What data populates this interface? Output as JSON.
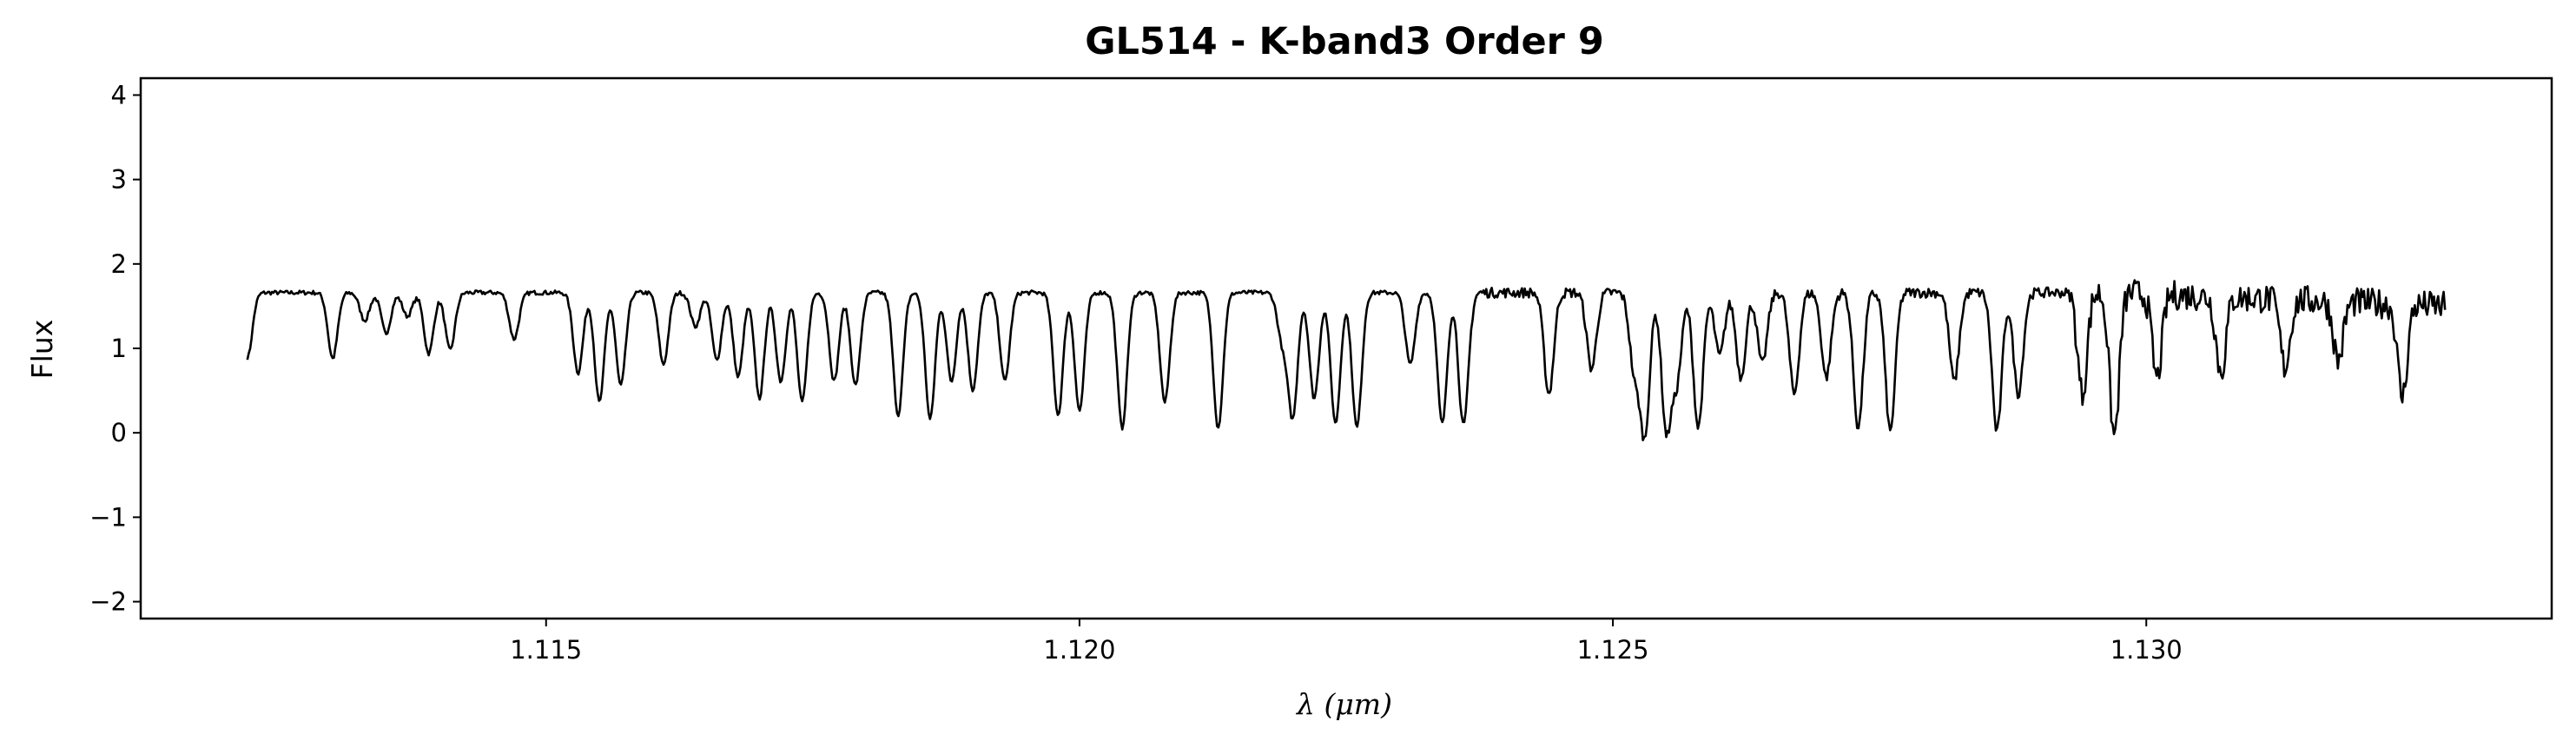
{
  "chart_data": {
    "type": "line",
    "title": "GL514 - K-band3 Order 9",
    "xlabel": "λ (μm)",
    "ylabel": "Flux",
    "xlim": [
      1.1112,
      1.1338
    ],
    "ylim": [
      -2.2,
      4.2
    ],
    "xticks": [
      1.115,
      1.12,
      1.125,
      1.13
    ],
    "xtick_labels": [
      "1.115",
      "1.120",
      "1.125",
      "1.130"
    ],
    "yticks": [
      -2,
      -1,
      0,
      1,
      2,
      3,
      4
    ],
    "ytick_labels": [
      "−2",
      "−1",
      "0",
      "1",
      "2",
      "3",
      "4"
    ],
    "grid": false,
    "series": [
      {
        "color": "#000000",
        "x_start": 1.1122,
        "x_end": 1.1328,
        "continuum": 1.66,
        "continuum_slope_end": 1.5,
        "absorption_lines": [
          [
            1.1122,
            0.35
          ],
          [
            1.1122,
            0.42
          ],
          [
            1.113,
            0.78
          ],
          [
            1.1133,
            0.33
          ],
          [
            1.1135,
            0.48
          ],
          [
            1.1137,
            0.28
          ],
          [
            1.1139,
            0.72
          ],
          [
            1.1141,
            0.68
          ],
          [
            1.1147,
            0.55
          ],
          [
            1.1153,
            0.95
          ],
          [
            1.1155,
            1.3
          ],
          [
            1.1157,
            1.1
          ],
          [
            1.1161,
            0.85
          ],
          [
            1.1164,
            0.4
          ],
          [
            1.1166,
            0.8
          ],
          [
            1.1168,
            1.0
          ],
          [
            1.117,
            1.25
          ],
          [
            1.1172,
            1.05
          ],
          [
            1.1174,
            1.3
          ],
          [
            1.1177,
            1.05
          ],
          [
            1.1179,
            1.1
          ],
          [
            1.1183,
            1.45
          ],
          [
            1.1186,
            1.5
          ],
          [
            1.1188,
            1.05
          ],
          [
            1.119,
            1.15
          ],
          [
            1.1193,
            1.05
          ],
          [
            1.1198,
            1.45
          ],
          [
            1.12,
            1.4
          ],
          [
            1.1204,
            1.6
          ],
          [
            1.1208,
            1.3
          ],
          [
            1.1213,
            1.6
          ],
          [
            1.1219,
            0.55
          ],
          [
            1.122,
            1.45
          ],
          [
            1.1222,
            1.25
          ],
          [
            1.1224,
            1.55
          ],
          [
            1.1226,
            1.6
          ],
          [
            1.1231,
            0.85
          ],
          [
            1.1234,
            1.55
          ],
          [
            1.1236,
            1.6
          ],
          [
            1.1244,
            1.2
          ],
          [
            1.1248,
            0.9
          ],
          [
            1.1252,
            0.9
          ],
          [
            1.1253,
            1.65
          ],
          [
            1.1255,
            1.6
          ],
          [
            1.1256,
            1.0
          ],
          [
            1.1258,
            1.6
          ],
          [
            1.126,
            0.75
          ],
          [
            1.1262,
            1.0
          ],
          [
            1.1264,
            0.85
          ],
          [
            1.1267,
            1.2
          ],
          [
            1.127,
            1.0
          ],
          [
            1.1273,
            1.6
          ],
          [
            1.1276,
            1.65
          ],
          [
            1.1282,
            1.05
          ],
          [
            1.1286,
            1.65
          ],
          [
            1.1288,
            1.2
          ],
          [
            1.1294,
            1.2
          ],
          [
            1.1297,
            1.7
          ],
          [
            1.1301,
            1.0
          ],
          [
            1.1307,
            0.9
          ],
          [
            1.1313,
            0.8
          ],
          [
            1.1318,
            0.7
          ],
          [
            1.1324,
            1.1
          ]
        ]
      }
    ]
  }
}
